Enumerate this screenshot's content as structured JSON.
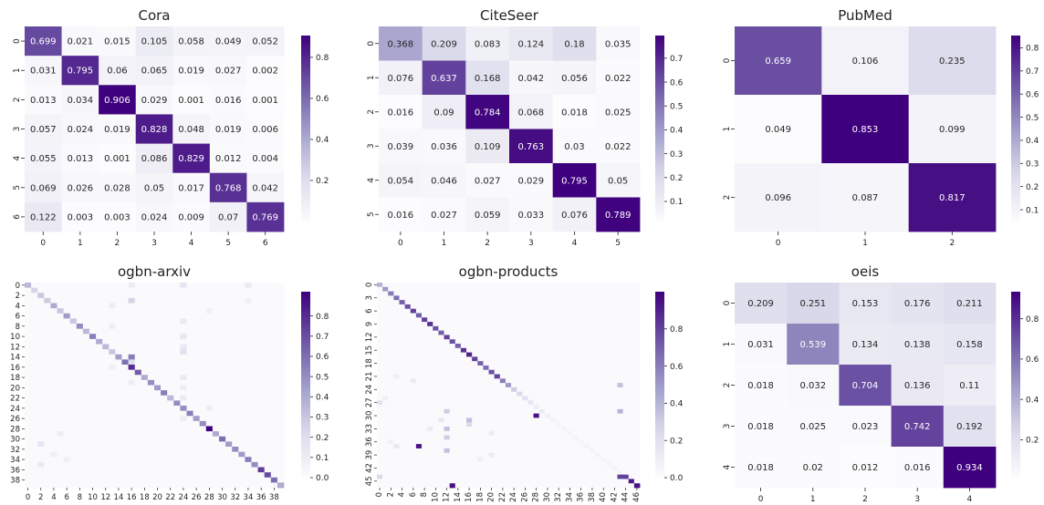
{
  "palette": {
    "low": "#fcfbfd",
    "mid": "#9e9ac8",
    "high": "#3f007d"
  },
  "chart_data": [
    {
      "type": "heatmap",
      "title": "Cora",
      "rows": [
        "0",
        "1",
        "2",
        "3",
        "4",
        "5",
        "6"
      ],
      "cols": [
        "0",
        "1",
        "2",
        "3",
        "4",
        "5",
        "6"
      ],
      "show_values": true,
      "values": [
        [
          0.699,
          0.021,
          0.015,
          0.105,
          0.058,
          0.049,
          0.052
        ],
        [
          0.031,
          0.795,
          0.06,
          0.065,
          0.019,
          0.027,
          0.002
        ],
        [
          0.013,
          0.034,
          0.906,
          0.029,
          0.001,
          0.016,
          0.001
        ],
        [
          0.057,
          0.024,
          0.019,
          0.828,
          0.048,
          0.019,
          0.006
        ],
        [
          0.055,
          0.013,
          0.001,
          0.086,
          0.829,
          0.012,
          0.004
        ],
        [
          0.069,
          0.026,
          0.028,
          0.05,
          0.017,
          0.768,
          0.042
        ],
        [
          0.122,
          0.003,
          0.003,
          0.024,
          0.009,
          0.07,
          0.769
        ]
      ],
      "vmin": 0.0,
      "vmax": 0.906,
      "colorbar_ticks": [
        "0.2",
        "0.4",
        "0.6",
        "0.8"
      ],
      "colorbar_tick_values": [
        0.2,
        0.4,
        0.6,
        0.8
      ]
    },
    {
      "type": "heatmap",
      "title": "CiteSeer",
      "rows": [
        "0",
        "1",
        "2",
        "3",
        "4",
        "5"
      ],
      "cols": [
        "0",
        "1",
        "2",
        "3",
        "4",
        "5"
      ],
      "show_values": true,
      "values": [
        [
          0.368,
          0.209,
          0.083,
          0.124,
          0.18,
          0.035
        ],
        [
          0.076,
          0.637,
          0.168,
          0.042,
          0.056,
          0.022
        ],
        [
          0.016,
          0.09,
          0.784,
          0.068,
          0.018,
          0.025
        ],
        [
          0.039,
          0.036,
          0.109,
          0.763,
          0.03,
          0.022
        ],
        [
          0.054,
          0.046,
          0.027,
          0.029,
          0.795,
          0.05
        ],
        [
          0.016,
          0.027,
          0.059,
          0.033,
          0.076,
          0.789
        ]
      ],
      "vmin": 0.016,
      "vmax": 0.795,
      "colorbar_ticks": [
        "0.1",
        "0.2",
        "0.3",
        "0.4",
        "0.5",
        "0.6",
        "0.7"
      ],
      "colorbar_tick_values": [
        0.1,
        0.2,
        0.3,
        0.4,
        0.5,
        0.6,
        0.7
      ]
    },
    {
      "type": "heatmap",
      "title": "PubMed",
      "rows": [
        "0",
        "1",
        "2"
      ],
      "cols": [
        "0",
        "1",
        "2"
      ],
      "show_values": true,
      "values": [
        [
          0.659,
          0.106,
          0.235
        ],
        [
          0.049,
          0.853,
          0.099
        ],
        [
          0.096,
          0.087,
          0.817
        ]
      ],
      "vmin": 0.049,
      "vmax": 0.853,
      "colorbar_ticks": [
        "0.1",
        "0.2",
        "0.3",
        "0.4",
        "0.5",
        "0.6",
        "0.7",
        "0.8"
      ],
      "colorbar_tick_values": [
        0.1,
        0.2,
        0.3,
        0.4,
        0.5,
        0.6,
        0.7,
        0.8
      ]
    },
    {
      "type": "heatmap",
      "title": "ogbn-arxiv",
      "n": 40,
      "show_values": false,
      "row_tick_labels": [
        "0",
        "2",
        "4",
        "6",
        "8",
        "10",
        "12",
        "14",
        "16",
        "18",
        "20",
        "22",
        "24",
        "26",
        "28",
        "30",
        "32",
        "34",
        "36",
        "38"
      ],
      "col_tick_labels": [
        "0",
        "2",
        "4",
        "6",
        "8",
        "10",
        "12",
        "14",
        "16",
        "18",
        "20",
        "22",
        "24",
        "26",
        "28",
        "30",
        "32",
        "34",
        "36",
        "38"
      ],
      "tick_step": 2,
      "diagonal": [
        0.35,
        0.25,
        0.3,
        0.28,
        0.4,
        0.3,
        0.45,
        0.3,
        0.5,
        0.35,
        0.55,
        0.4,
        0.35,
        0.3,
        0.45,
        0.6,
        0.8,
        0.65,
        0.4,
        0.5,
        0.45,
        0.55,
        0.35,
        0.5,
        0.5,
        0.55,
        0.45,
        0.5,
        0.92,
        0.4,
        0.6,
        0.45,
        0.5,
        0.45,
        0.55,
        0.5,
        0.75,
        0.7,
        0.6,
        0.4
      ],
      "off_diagonal": [
        [
          14,
          16,
          0.55
        ],
        [
          15,
          16,
          0.2
        ],
        [
          3,
          16,
          0.25
        ],
        [
          0,
          16,
          0.1
        ],
        [
          0,
          24,
          0.15
        ],
        [
          7,
          24,
          0.12
        ],
        [
          10,
          24,
          0.15
        ],
        [
          13,
          24,
          0.18
        ],
        [
          22,
          24,
          0.12
        ],
        [
          24,
          28,
          0.1
        ],
        [
          4,
          13,
          0.1
        ],
        [
          8,
          13,
          0.1
        ],
        [
          16,
          13,
          0.08
        ],
        [
          31,
          2,
          0.15
        ],
        [
          35,
          2,
          0.12
        ],
        [
          29,
          5,
          0.1
        ],
        [
          0,
          34,
          0.12
        ],
        [
          3,
          34,
          0.08
        ],
        [
          5,
          28,
          0.08
        ],
        [
          12,
          24,
          0.12
        ],
        [
          19,
          16,
          0.1
        ],
        [
          33,
          4,
          0.08
        ],
        [
          34,
          6,
          0.08
        ],
        [
          20,
          24,
          0.1
        ],
        [
          26,
          24,
          0.1
        ],
        [
          18,
          24,
          0.12
        ]
      ],
      "vmin": 0.0,
      "vmax": 0.92,
      "colorbar_ticks": [
        "0.0",
        "0.1",
        "0.2",
        "0.3",
        "0.4",
        "0.5",
        "0.6",
        "0.7",
        "0.8"
      ],
      "colorbar_tick_values": [
        0.0,
        0.1,
        0.2,
        0.3,
        0.4,
        0.5,
        0.6,
        0.7,
        0.8
      ]
    },
    {
      "type": "heatmap",
      "title": "ogbn-products",
      "n": 47,
      "show_values": false,
      "row_tick_labels": [
        "0",
        "3",
        "6",
        "9",
        "12",
        "15",
        "18",
        "21",
        "24",
        "27",
        "30",
        "33",
        "36",
        "39",
        "42",
        "45"
      ],
      "row_tick_step": 3,
      "col_tick_labels": [
        "0",
        "2",
        "4",
        "6",
        "8",
        "10",
        "12",
        "14",
        "16",
        "18",
        "20",
        "22",
        "24",
        "26",
        "28",
        "30",
        "32",
        "34",
        "36",
        "38",
        "40",
        "42",
        "44",
        "46"
      ],
      "tick_step": 2,
      "diagonal": [
        0.4,
        0.5,
        0.6,
        0.65,
        0.7,
        0.75,
        0.8,
        0.7,
        0.8,
        0.85,
        0.75,
        0.7,
        0.8,
        0.75,
        0.7,
        0.85,
        0.9,
        0.8,
        0.7,
        0.65,
        0.75,
        0.8,
        0.6,
        0.5,
        0.3,
        0.25,
        0.2,
        0.15,
        0.1,
        0.12,
        0.08,
        0.06,
        0.05,
        0.05,
        0.05,
        0.05,
        0.05,
        0.05,
        0.05,
        0.05,
        0.05,
        0.05,
        0.05,
        0.05,
        0.8,
        0.92,
        0.95
      ],
      "off_diagonal": [
        [
          23,
          43,
          0.35
        ],
        [
          29,
          43,
          0.4
        ],
        [
          44,
          43,
          0.8
        ],
        [
          30,
          28,
          0.95
        ],
        [
          37,
          7,
          0.95
        ],
        [
          46,
          13,
          0.95
        ],
        [
          27,
          0,
          0.2
        ],
        [
          44,
          0,
          0.25
        ],
        [
          29,
          12,
          0.3
        ],
        [
          33,
          12,
          0.35
        ],
        [
          35,
          12,
          0.3
        ],
        [
          38,
          12,
          0.35
        ],
        [
          31,
          16,
          0.35
        ],
        [
          32,
          16,
          0.25
        ],
        [
          31,
          11,
          0.15
        ],
        [
          33,
          9,
          0.12
        ],
        [
          37,
          3,
          0.15
        ],
        [
          39,
          20,
          0.12
        ],
        [
          34,
          20,
          0.12
        ],
        [
          22,
          6,
          0.12
        ],
        [
          21,
          3,
          0.1
        ],
        [
          26,
          1,
          0.1
        ],
        [
          36,
          2,
          0.08
        ],
        [
          40,
          18,
          0.1
        ]
      ],
      "vmin": 0.0,
      "vmax": 1.0,
      "colorbar_ticks": [
        "0.0",
        "0.2",
        "0.4",
        "0.6",
        "0.8"
      ],
      "colorbar_tick_values": [
        0.0,
        0.2,
        0.4,
        0.6,
        0.8
      ]
    },
    {
      "type": "heatmap",
      "title": "oeis",
      "rows": [
        "0",
        "1",
        "2",
        "3",
        "4"
      ],
      "cols": [
        "0",
        "1",
        "2",
        "3",
        "4"
      ],
      "show_values": true,
      "values": [
        [
          0.209,
          0.251,
          0.153,
          0.176,
          0.211
        ],
        [
          0.031,
          0.539,
          0.134,
          0.138,
          0.158
        ],
        [
          0.018,
          0.032,
          0.704,
          0.136,
          0.11
        ],
        [
          0.018,
          0.025,
          0.023,
          0.742,
          0.192
        ],
        [
          0.018,
          0.02,
          0.012,
          0.016,
          0.934
        ]
      ],
      "vmin": 0.012,
      "vmax": 0.934,
      "colorbar_ticks": [
        "0.2",
        "0.4",
        "0.6",
        "0.8"
      ],
      "colorbar_tick_values": [
        0.2,
        0.4,
        0.6,
        0.8
      ]
    }
  ]
}
